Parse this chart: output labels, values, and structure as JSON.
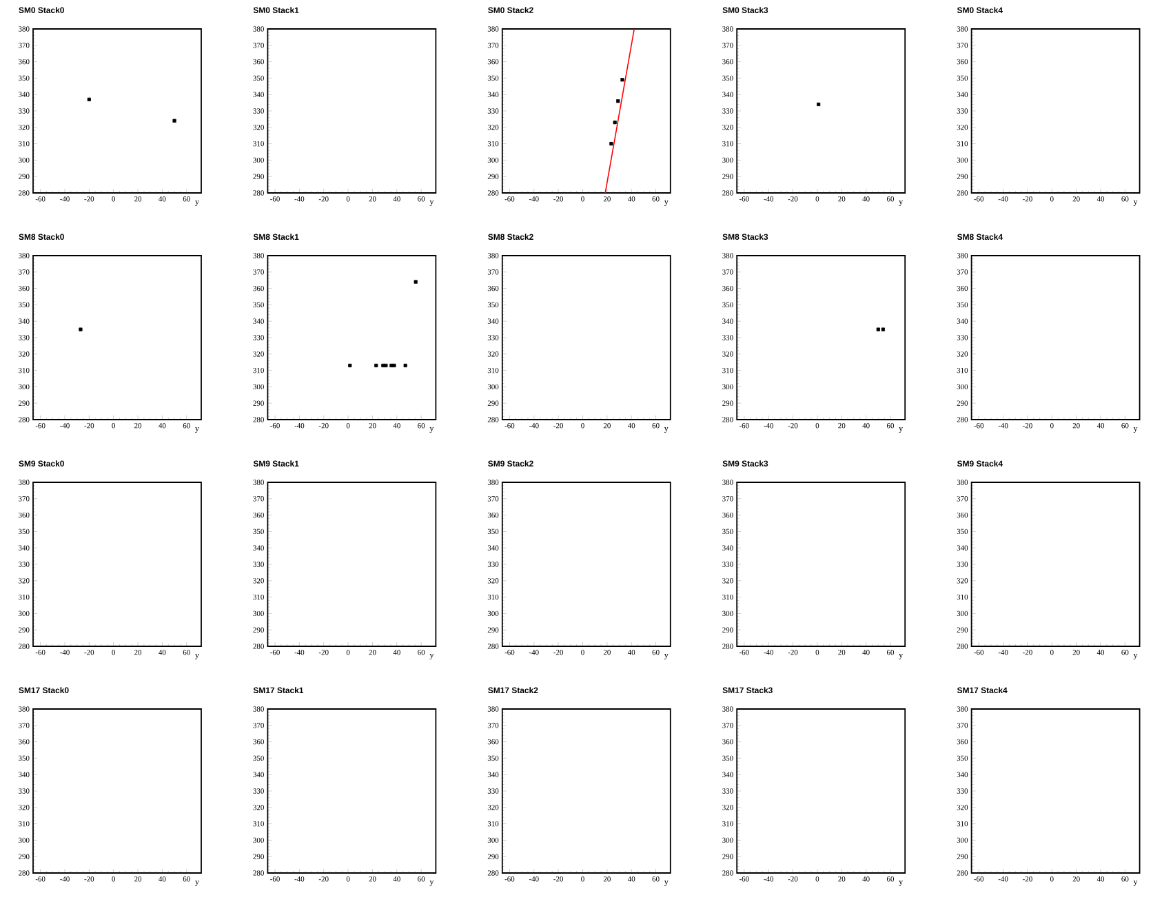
{
  "chart_data": [
    {
      "type": "scatter",
      "title": "SM0 Stack0",
      "xlabel": "y",
      "xlim": [
        -66,
        72
      ],
      "ylim": [
        280,
        380
      ],
      "xticks": [
        -60,
        -40,
        -20,
        0,
        20,
        40,
        60
      ],
      "yticks": [
        280,
        290,
        300,
        310,
        320,
        330,
        340,
        350,
        360,
        370,
        380
      ],
      "marker": "square",
      "series": [
        {
          "color": "#000000",
          "x": [
            -20,
            50
          ],
          "values": [
            337,
            324
          ]
        }
      ]
    },
    {
      "type": "scatter",
      "title": "SM0 Stack1",
      "xlabel": "y",
      "xlim": [
        -66,
        72
      ],
      "ylim": [
        280,
        380
      ],
      "xticks": [
        -60,
        -40,
        -20,
        0,
        20,
        40,
        60
      ],
      "yticks": [
        280,
        290,
        300,
        310,
        320,
        330,
        340,
        350,
        360,
        370,
        380
      ]
    },
    {
      "type": "scatter",
      "title": "SM0 Stack2",
      "xlabel": "y",
      "xlim": [
        -66,
        72
      ],
      "ylim": [
        280,
        380
      ],
      "xticks": [
        -60,
        -40,
        -20,
        0,
        20,
        40,
        60
      ],
      "yticks": [
        280,
        290,
        300,
        310,
        320,
        330,
        340,
        350,
        360,
        370,
        380
      ],
      "marker": "square",
      "series": [
        {
          "color": "#000000",
          "x": [
            23.4,
            26.4,
            29,
            32.5
          ],
          "values": [
            310,
            323,
            336,
            349
          ]
        },
        {
          "type": "line",
          "marker": "none",
          "color": "#ff0000",
          "x": [
            18.5,
            42.3
          ],
          "values": [
            280,
            380
          ]
        }
      ]
    },
    {
      "type": "scatter",
      "title": "SM0 Stack3",
      "xlabel": "y",
      "xlim": [
        -66,
        72
      ],
      "ylim": [
        280,
        380
      ],
      "xticks": [
        -60,
        -40,
        -20,
        0,
        20,
        40,
        60
      ],
      "yticks": [
        280,
        290,
        300,
        310,
        320,
        330,
        340,
        350,
        360,
        370,
        380
      ],
      "marker": "square",
      "series": [
        {
          "color": "#000000",
          "x": [
            1
          ],
          "values": [
            334
          ]
        }
      ]
    },
    {
      "type": "scatter",
      "title": "SM0 Stack4",
      "xlabel": "y",
      "xlim": [
        -66,
        72
      ],
      "ylim": [
        280,
        380
      ],
      "xticks": [
        -60,
        -40,
        -20,
        0,
        20,
        40,
        60
      ],
      "yticks": [
        280,
        290,
        300,
        310,
        320,
        330,
        340,
        350,
        360,
        370,
        380
      ]
    },
    {
      "type": "scatter",
      "title": "SM8 Stack0",
      "xlabel": "y",
      "xlim": [
        -66,
        72
      ],
      "ylim": [
        280,
        380
      ],
      "xticks": [
        -60,
        -40,
        -20,
        0,
        20,
        40,
        60
      ],
      "yticks": [
        280,
        290,
        300,
        310,
        320,
        330,
        340,
        350,
        360,
        370,
        380
      ],
      "marker": "square",
      "series": [
        {
          "color": "#000000",
          "x": [
            -27
          ],
          "values": [
            335
          ]
        }
      ]
    },
    {
      "type": "scatter",
      "title": "SM8 Stack1",
      "xlabel": "y",
      "xlim": [
        -66,
        72
      ],
      "ylim": [
        280,
        380
      ],
      "xticks": [
        -60,
        -40,
        -20,
        0,
        20,
        40,
        60
      ],
      "yticks": [
        280,
        290,
        300,
        310,
        320,
        330,
        340,
        350,
        360,
        370,
        380
      ],
      "marker": "square",
      "series": [
        {
          "color": "#000000",
          "x": [
            1.5,
            23,
            28.7,
            31,
            35.5,
            37.8,
            47,
            55.5
          ],
          "values": [
            313,
            313,
            313,
            313,
            313,
            313,
            313,
            364
          ]
        }
      ]
    },
    {
      "type": "scatter",
      "title": "SM8 Stack2",
      "xlabel": "y",
      "xlim": [
        -66,
        72
      ],
      "ylim": [
        280,
        380
      ],
      "xticks": [
        -60,
        -40,
        -20,
        0,
        20,
        40,
        60
      ],
      "yticks": [
        280,
        290,
        300,
        310,
        320,
        330,
        340,
        350,
        360,
        370,
        380
      ]
    },
    {
      "type": "scatter",
      "title": "SM8 Stack3",
      "xlabel": "y",
      "xlim": [
        -66,
        72
      ],
      "ylim": [
        280,
        380
      ],
      "xticks": [
        -60,
        -40,
        -20,
        0,
        20,
        40,
        60
      ],
      "yticks": [
        280,
        290,
        300,
        310,
        320,
        330,
        340,
        350,
        360,
        370,
        380
      ],
      "marker": "square",
      "series": [
        {
          "color": "#000000",
          "x": [
            50,
            54
          ],
          "values": [
            335,
            335
          ]
        }
      ]
    },
    {
      "type": "scatter",
      "title": "SM8 Stack4",
      "xlabel": "y",
      "xlim": [
        -66,
        72
      ],
      "ylim": [
        280,
        380
      ],
      "xticks": [
        -60,
        -40,
        -20,
        0,
        20,
        40,
        60
      ],
      "yticks": [
        280,
        290,
        300,
        310,
        320,
        330,
        340,
        350,
        360,
        370,
        380
      ]
    },
    {
      "type": "scatter",
      "title": "SM9 Stack0",
      "xlabel": "y",
      "xlim": [
        -66,
        72
      ],
      "ylim": [
        280,
        380
      ],
      "xticks": [
        -60,
        -40,
        -20,
        0,
        20,
        40,
        60
      ],
      "yticks": [
        280,
        290,
        300,
        310,
        320,
        330,
        340,
        350,
        360,
        370,
        380
      ]
    },
    {
      "type": "scatter",
      "title": "SM9 Stack1",
      "xlabel": "y",
      "xlim": [
        -66,
        72
      ],
      "ylim": [
        280,
        380
      ],
      "xticks": [
        -60,
        -40,
        -20,
        0,
        20,
        40,
        60
      ],
      "yticks": [
        280,
        290,
        300,
        310,
        320,
        330,
        340,
        350,
        360,
        370,
        380
      ]
    },
    {
      "type": "scatter",
      "title": "SM9 Stack2",
      "xlabel": "y",
      "xlim": [
        -66,
        72
      ],
      "ylim": [
        280,
        380
      ],
      "xticks": [
        -60,
        -40,
        -20,
        0,
        20,
        40,
        60
      ],
      "yticks": [
        280,
        290,
        300,
        310,
        320,
        330,
        340,
        350,
        360,
        370,
        380
      ]
    },
    {
      "type": "scatter",
      "title": "SM9 Stack3",
      "xlabel": "y",
      "xlim": [
        -66,
        72
      ],
      "ylim": [
        280,
        380
      ],
      "xticks": [
        -60,
        -40,
        -20,
        0,
        20,
        40,
        60
      ],
      "yticks": [
        280,
        290,
        300,
        310,
        320,
        330,
        340,
        350,
        360,
        370,
        380
      ]
    },
    {
      "type": "scatter",
      "title": "SM9 Stack4",
      "xlabel": "y",
      "xlim": [
        -66,
        72
      ],
      "ylim": [
        280,
        380
      ],
      "xticks": [
        -60,
        -40,
        -20,
        0,
        20,
        40,
        60
      ],
      "yticks": [
        280,
        290,
        300,
        310,
        320,
        330,
        340,
        350,
        360,
        370,
        380
      ]
    },
    {
      "type": "scatter",
      "title": "SM17 Stack0",
      "xlabel": "y",
      "xlim": [
        -66,
        72
      ],
      "ylim": [
        280,
        380
      ],
      "xticks": [
        -60,
        -40,
        -20,
        0,
        20,
        40,
        60
      ],
      "yticks": [
        280,
        290,
        300,
        310,
        320,
        330,
        340,
        350,
        360,
        370,
        380
      ]
    },
    {
      "type": "scatter",
      "title": "SM17 Stack1",
      "xlabel": "y",
      "xlim": [
        -66,
        72
      ],
      "ylim": [
        280,
        380
      ],
      "xticks": [
        -60,
        -40,
        -20,
        0,
        20,
        40,
        60
      ],
      "yticks": [
        280,
        290,
        300,
        310,
        320,
        330,
        340,
        350,
        360,
        370,
        380
      ]
    },
    {
      "type": "scatter",
      "title": "SM17 Stack2",
      "xlabel": "y",
      "xlim": [
        -66,
        72
      ],
      "ylim": [
        280,
        380
      ],
      "xticks": [
        -60,
        -40,
        -20,
        0,
        20,
        40,
        60
      ],
      "yticks": [
        280,
        290,
        300,
        310,
        320,
        330,
        340,
        350,
        360,
        370,
        380
      ]
    },
    {
      "type": "scatter",
      "title": "SM17 Stack3",
      "xlabel": "y",
      "xlim": [
        -66,
        72
      ],
      "ylim": [
        280,
        380
      ],
      "xticks": [
        -60,
        -40,
        -20,
        0,
        20,
        40,
        60
      ],
      "yticks": [
        280,
        290,
        300,
        310,
        320,
        330,
        340,
        350,
        360,
        370,
        380
      ]
    },
    {
      "type": "scatter",
      "title": "SM17 Stack4",
      "xlabel": "y",
      "xlim": [
        -66,
        72
      ],
      "ylim": [
        280,
        380
      ],
      "xticks": [
        -60,
        -40,
        -20,
        0,
        20,
        40,
        60
      ],
      "yticks": [
        280,
        290,
        300,
        310,
        320,
        330,
        340,
        350,
        360,
        370,
        380
      ]
    }
  ]
}
